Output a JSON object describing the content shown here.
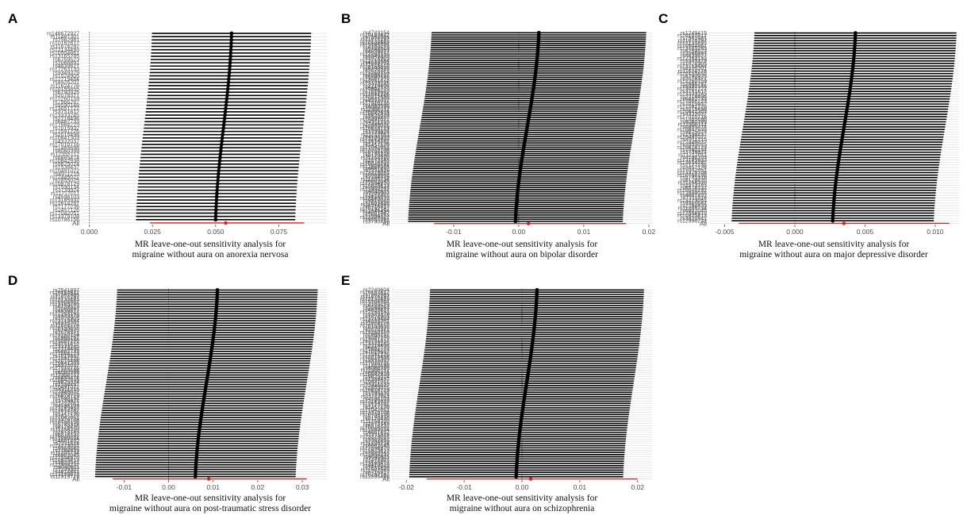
{
  "chart_data": [
    {
      "letter": "A",
      "type": "forest",
      "caption_line1": "MR leave-one-out sensitivity analysis for",
      "caption_line2": "migraine without aura on anorexia nervosa",
      "xlim": [
        -0.003,
        0.094
      ],
      "xticks": [
        0.0,
        0.025,
        0.05,
        0.075
      ],
      "xtick_labels": [
        "0.000",
        "0.025",
        "0.050",
        "0.075"
      ],
      "n_snps": 58,
      "beta_range": [
        0.05,
        0.057
      ],
      "ci_half_width": 0.0315,
      "overall_beta": 0.054,
      "overall_ci": [
        0.024,
        0.085
      ],
      "snp_labels": [
        "rs146672927",
        "rs11487301",
        "rs7562981",
        "rs10162812",
        "rs11674297",
        "rs12134493",
        "rs10504861",
        "rs13165285",
        "rs6759523",
        "rs2066891",
        "rs4839827",
        "rs17263133",
        "rs9349379",
        "rs1024905",
        "rs12719484",
        "rs4926201",
        "rs11624776",
        "rs10155855",
        "rs6790925",
        "rs2078371",
        "rs12260159",
        "rs7966287",
        "rs9590148",
        "rs13051722",
        "rs3751812",
        "rs13333245",
        "rs2218496",
        "rs6462733",
        "rs17664223",
        "rs7015932",
        "rs12591226",
        "rs2015498",
        "rs10841303",
        "rs4332037",
        "rs17010716",
        "rs1465698",
        "rs8060399",
        "rs12355112",
        "rs6885474",
        "rs10842938",
        "rs9825024",
        "rs1538437",
        "rs10491022",
        "rs4911215",
        "rs12445022",
        "rs2855025",
        "rs10878129",
        "rs7590134",
        "rs3739924",
        "rs11717011",
        "rs4598103",
        "rs13185932",
        "rs12614287",
        "rs7177236",
        "rs2457126",
        "rs17042051",
        "rs13379108",
        "rs10786156"
      ],
      "all_label": "All"
    },
    {
      "letter": "B",
      "type": "forest",
      "caption_line1": "MR leave-one-out sensitivity analysis for",
      "caption_line2": "migraine without aura on bipolar disorder",
      "xlim": [
        -0.0195,
        0.0205
      ],
      "xticks": [
        -0.01,
        0.0,
        0.01,
        0.02
      ],
      "xtick_labels": [
        "-0.01",
        "0.00",
        "0.01",
        "0.02"
      ],
      "n_snps": 90,
      "beta_range": [
        -0.0005,
        0.0035
      ],
      "ci_half_width": 0.0165,
      "overall_beta": 0.0015,
      "overall_ci": [
        -0.013,
        0.0165
      ],
      "snp_labels": [
        "rs4743154",
        "rs10162812",
        "rs7562981",
        "rs11674297",
        "rs12134493",
        "rs10504861",
        "rs13165285",
        "rs6759523",
        "rs2066891",
        "rs4839827",
        "rs17263133",
        "rs9349379",
        "rs1024905",
        "rs12719484",
        "rs4926201",
        "rs11624776",
        "rs10155855",
        "rs6790925",
        "rs2078371",
        "rs12260159",
        "rs7966287",
        "rs9590148",
        "rs13051722",
        "rs3751812",
        "rs13333245",
        "rs2218496",
        "rs6462733",
        "rs17664223",
        "rs7015932",
        "rs12591226",
        "rs2015498",
        "rs10841303",
        "rs4332037",
        "rs17010716",
        "rs1465698",
        "rs8060399",
        "rs12355112",
        "rs6885474",
        "rs10842938",
        "rs9825024",
        "rs1538437",
        "rs10491022",
        "rs4911215",
        "rs12445022",
        "rs2855025",
        "rs10878129",
        "rs7590134",
        "rs3739924",
        "rs11717011",
        "rs4598103",
        "rs13185932",
        "rs12614287",
        "rs7177236",
        "rs2457126",
        "rs17042051",
        "rs13379108",
        "rs10786156",
        "rs5745318",
        "rs8178420",
        "rs11758320",
        "rs2973145",
        "rs6578232",
        "rs10046292",
        "rs12888034",
        "rs4661452",
        "rs7211818",
        "rs13273051",
        "rs9366682",
        "rs2284839",
        "rs11205734",
        "rs6902045",
        "rs17554910",
        "rs10925813",
        "rs3920541",
        "rs12998232",
        "rs8040811",
        "rs7249307",
        "rs4814863",
        "rs13109873",
        "rs9918045",
        "rs2651899",
        "rs11582563",
        "rs6716917",
        "rs10792187",
        "rs12845494",
        "rs4081947",
        "rs7684253",
        "rs13208321",
        "rs9267891",
        "rs3790455"
      ],
      "all_label": "All"
    },
    {
      "letter": "C",
      "type": "forest",
      "caption_line1": "MR leave-one-out sensitivity analysis for",
      "caption_line2": "migraine without aura on major depressive disorder",
      "xlim": [
        -0.0061,
        0.0117
      ],
      "xticks": [
        -0.005,
        0.0,
        0.005,
        0.01
      ],
      "xtick_labels": [
        "-0.005",
        "0.000",
        "0.005",
        "0.010"
      ],
      "n_snps": 75,
      "beta_range": [
        0.0027,
        0.0045
      ],
      "ci_half_width": 0.0072,
      "overall_beta": 0.0035,
      "overall_ci": [
        -0.004,
        0.011
      ],
      "snp_labels": [
        "rs1249415",
        "rs10162812",
        "rs7562981",
        "rs11674297",
        "rs12134493",
        "rs10504861",
        "rs13165285",
        "rs6759523",
        "rs2066891",
        "rs4839827",
        "rs17263133",
        "rs9349379",
        "rs1024905",
        "rs12719484",
        "rs4926201",
        "rs11624776",
        "rs10155855",
        "rs6790925",
        "rs2078371",
        "rs12260159",
        "rs7966287",
        "rs9590148",
        "rs13051722",
        "rs3751812",
        "rs13333245",
        "rs2218496",
        "rs6462733",
        "rs17664223",
        "rs7015932",
        "rs12591226",
        "rs2015498",
        "rs10841303",
        "rs4332037",
        "rs17010716",
        "rs1465698",
        "rs8060399",
        "rs12355112",
        "rs6885474",
        "rs10842938",
        "rs9825024",
        "rs1538437",
        "rs10491022",
        "rs4911215",
        "rs12445022",
        "rs2855025",
        "rs10878129",
        "rs7590134",
        "rs3739924",
        "rs11717011",
        "rs4598103",
        "rs13185932",
        "rs12614287",
        "rs7177236",
        "rs2457126",
        "rs17042051",
        "rs13379108",
        "rs10786156",
        "rs5745318",
        "rs8178420",
        "rs11758320",
        "rs2973145",
        "rs6578232",
        "rs10046292",
        "rs12888034",
        "rs4661452",
        "rs7211818",
        "rs13273051",
        "rs9366682",
        "rs2284839",
        "rs11205734",
        "rs6902045",
        "rs17554910",
        "rs10925813",
        "rs3920541",
        "rs12998232"
      ],
      "all_label": "All"
    },
    {
      "letter": "D",
      "type": "forest",
      "caption_line1": "MR leave-one-out sensitivity analysis for",
      "caption_line2": "migraine without aura on post-traumatic stress disorder",
      "xlim": [
        -0.0195,
        0.0355
      ],
      "xticks": [
        -0.01,
        0.0,
        0.01,
        0.02,
        0.03
      ],
      "xtick_labels": [
        "-0.01",
        "0.00",
        "0.01",
        "0.02",
        "0.03"
      ],
      "n_snps": 80,
      "beta_range": [
        0.006,
        0.0115
      ],
      "ci_half_width": 0.0225,
      "overall_beta": 0.009,
      "overall_ci": [
        -0.0125,
        0.031
      ],
      "snp_labels": [
        "rs2541897",
        "rs10162812",
        "rs7562981",
        "rs11674297",
        "rs12134493",
        "rs10504861",
        "rs13165285",
        "rs6759523",
        "rs2066891",
        "rs4839827",
        "rs17263133",
        "rs9349379",
        "rs1024905",
        "rs12719484",
        "rs4926201",
        "rs11624776",
        "rs10155855",
        "rs6790925",
        "rs2078371",
        "rs12260159",
        "rs7966287",
        "rs9590148",
        "rs13051722",
        "rs3751812",
        "rs13333245",
        "rs2218496",
        "rs6462733",
        "rs17664223",
        "rs7015932",
        "rs12591226",
        "rs2015498",
        "rs10841303",
        "rs4332037",
        "rs17010716",
        "rs1465698",
        "rs8060399",
        "rs12355112",
        "rs6885474",
        "rs10842938",
        "rs9825024",
        "rs1538437",
        "rs10491022",
        "rs4911215",
        "rs12445022",
        "rs2855025",
        "rs10878129",
        "rs7590134",
        "rs3739924",
        "rs11717011",
        "rs4598103",
        "rs13185932",
        "rs12614287",
        "rs7177236",
        "rs2457126",
        "rs17042051",
        "rs13379108",
        "rs10786156",
        "rs5745318",
        "rs8178420",
        "rs11758320",
        "rs2973145",
        "rs6578232",
        "rs10046292",
        "rs12888034",
        "rs4661452",
        "rs7211818",
        "rs13273051",
        "rs9366682",
        "rs2284839",
        "rs11205734",
        "rs6902045",
        "rs17554910",
        "rs10925813",
        "rs3920541",
        "rs12998232",
        "rs8040811",
        "rs7249307",
        "rs4814863",
        "rs13109873",
        "rs11919779"
      ],
      "all_label": "All"
    },
    {
      "letter": "E",
      "type": "forest",
      "caption_line1": "MR leave-one-out sensitivity analysis for",
      "caption_line2": "migraine without aura on schizophrenia",
      "xlim": [
        -0.0225,
        0.0225
      ],
      "xticks": [
        -0.02,
        -0.01,
        0.0,
        0.01,
        0.02
      ],
      "xtick_labels": [
        "-0.02",
        "-0.01",
        "0.00",
        "0.01",
        "0.02"
      ],
      "n_snps": 85,
      "beta_range": [
        -0.001,
        0.003
      ],
      "ci_half_width": 0.0185,
      "overall_beta": 0.0015,
      "overall_ci": [
        -0.0165,
        0.02
      ],
      "snp_labels": [
        "rs2240604",
        "rs10162812",
        "rs7562981",
        "rs11674297",
        "rs12134493",
        "rs10504861",
        "rs13165285",
        "rs6759523",
        "rs2066891",
        "rs4839827",
        "rs17263133",
        "rs9349379",
        "rs1024905",
        "rs12719484",
        "rs4926201",
        "rs11624776",
        "rs10155855",
        "rs6790925",
        "rs2078371",
        "rs12260159",
        "rs7966287",
        "rs9590148",
        "rs13051722",
        "rs3751812",
        "rs13333245",
        "rs2218496",
        "rs6462733",
        "rs17664223",
        "rs7015932",
        "rs12591226",
        "rs2015498",
        "rs10841303",
        "rs4332037",
        "rs17010716",
        "rs1465698",
        "rs8060399",
        "rs12355112",
        "rs6885474",
        "rs10842938",
        "rs9825024",
        "rs1538437",
        "rs10491022",
        "rs4911215",
        "rs12445022",
        "rs2855025",
        "rs10878129",
        "rs7590134",
        "rs3739924",
        "rs11717011",
        "rs4598103",
        "rs13185932",
        "rs12614287",
        "rs7177236",
        "rs2457126",
        "rs17042051",
        "rs13379108",
        "rs10786156",
        "rs5745318",
        "rs8178420",
        "rs11758320",
        "rs2973145",
        "rs6578232",
        "rs10046292",
        "rs12888034",
        "rs4661452",
        "rs7211818",
        "rs13273051",
        "rs9366682",
        "rs2284839",
        "rs11205734",
        "rs6902045",
        "rs17554910",
        "rs10925813",
        "rs3920541",
        "rs12998232",
        "rs8040811",
        "rs7249307",
        "rs4814863",
        "rs13109873",
        "rs9918045",
        "rs2651899",
        "rs11582563",
        "rs6716917",
        "rs10792187",
        "rs13995459"
      ],
      "all_label": "All"
    }
  ],
  "colors": {
    "ci_line": "#000000",
    "point": "#000000",
    "overall": "#e41a1c",
    "zero_line": "#555555",
    "grid_row": "#d9d9d9",
    "axis_text": "#4d4d4d"
  }
}
